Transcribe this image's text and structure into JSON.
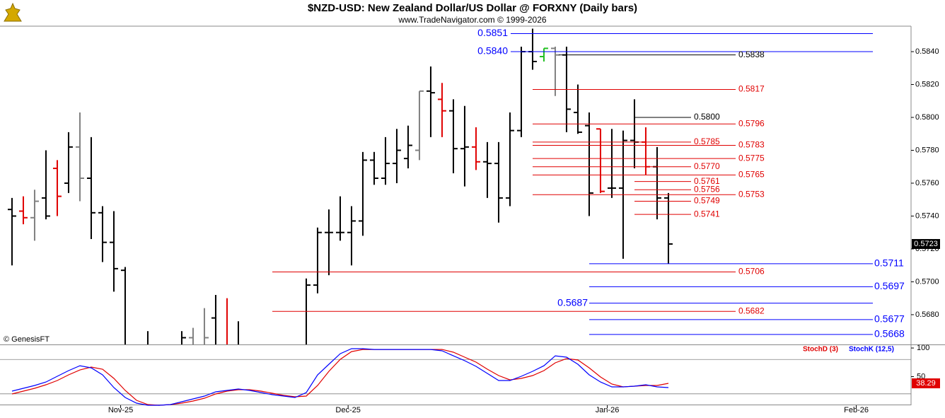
{
  "chart_data": [
    {
      "type": "ohlc",
      "title": "$NZD-USD:  New Zealand Dollar/US Dollar @ FORXNY  (Daily bars)",
      "subtitle": "www.TradeNavigator.com © 1999-2026",
      "annotation": "© GenesisFT",
      "open": [
        0.5744,
        0.5743,
        0.5739,
        0.5751,
        0.5769,
        0.576,
        0.5782,
        0.5763,
        0.5742,
        0.5724,
        0.5707,
        null,
        null,
        null,
        null,
        null,
        0.5666,
        null,
        0.5678,
        null,
        null,
        null,
        null,
        null,
        null,
        null,
        null,
        0.5698,
        0.573,
        0.573,
        0.573,
        0.5737,
        0.5774,
        0.5763,
        0.5772,
        0.5775,
        0.578,
        0.5816,
        0.5811,
        0.5804,
        0.5781,
        0.5782,
        0.5773,
        0.5772,
        0.5751,
        0.5792,
        0.584,
        0.5837,
        0.5842,
        0.5838,
        0.5803,
        0.5795,
        0.5793,
        0.5757,
        0.5757,
        0.5786,
        0.5785,
        0.577,
        0.5751
      ],
      "high": [
        0.5751,
        0.5752,
        0.5756,
        0.578,
        0.5774,
        0.5791,
        0.5803,
        0.5788,
        0.5746,
        0.5743,
        0.5709,
        null,
        0.567,
        null,
        null,
        0.567,
        0.5672,
        0.5684,
        0.5692,
        0.569,
        0.5676,
        null,
        null,
        null,
        null,
        null,
        0.5702,
        0.5733,
        0.5744,
        0.5752,
        0.5746,
        0.5779,
        0.5779,
        0.5788,
        0.5793,
        0.5795,
        0.5816,
        0.5831,
        0.5821,
        0.5811,
        0.5807,
        0.5794,
        0.5785,
        0.5785,
        0.5803,
        0.5843,
        0.5854,
        0.5842,
        0.5843,
        0.5843,
        0.582,
        0.5803,
        0.5793,
        0.5793,
        0.5792,
        0.5811,
        0.5794,
        0.5782,
        0.5754
      ],
      "low": [
        0.571,
        0.5735,
        0.5725,
        0.5738,
        0.574,
        0.5754,
        0.5749,
        0.5726,
        0.5712,
        0.5694,
        null,
        null,
        null,
        null,
        null,
        null,
        null,
        null,
        null,
        null,
        null,
        null,
        null,
        null,
        null,
        null,
        null,
        0.5693,
        0.5704,
        0.5725,
        0.571,
        0.5728,
        0.5759,
        0.5759,
        0.576,
        0.5769,
        0.5774,
        0.5788,
        0.5788,
        0.5766,
        0.5758,
        0.5768,
        0.5751,
        0.5736,
        0.5746,
        0.5788,
        0.5829,
        0.5834,
        0.5813,
        0.5791,
        0.579,
        0.574,
        0.5754,
        0.5751,
        0.5714,
        0.5769,
        0.5765,
        0.5738,
        0.5711
      ],
      "close": [
        0.574,
        0.5739,
        0.5749,
        0.574,
        0.5752,
        0.5782,
        0.5763,
        0.5742,
        0.5724,
        0.5708,
        null,
        null,
        null,
        null,
        null,
        0.5666,
        null,
        0.5666,
        null,
        null,
        null,
        null,
        null,
        null,
        null,
        null,
        0.5698,
        0.573,
        0.573,
        0.573,
        0.5737,
        0.5774,
        0.5763,
        0.5772,
        0.578,
        0.5783,
        0.5816,
        0.5815,
        0.5804,
        0.5781,
        0.5782,
        0.5773,
        0.5772,
        0.5751,
        0.5792,
        0.584,
        0.5834,
        0.5842,
        0.5838,
        0.5805,
        0.5791,
        0.5754,
        0.5755,
        0.5757,
        0.5786,
        0.5785,
        0.577,
        0.5751,
        0.5723
      ],
      "colors": [
        "#000000",
        "#e00000",
        "#808080",
        "#000000",
        "#e00000",
        "#000000",
        "#808080",
        "#000000",
        "#000000",
        "#000000",
        "#000000",
        "#000000",
        "#000000",
        "#000000",
        "#000000",
        "#000000",
        "#808080",
        "#808080",
        "#000000",
        "#e00000",
        "#000000",
        "#000000",
        "#000000",
        "#000000",
        "#000000",
        "#000000",
        "#000000",
        "#000000",
        "#000000",
        "#000000",
        "#000000",
        "#000000",
        "#000000",
        "#000000",
        "#000000",
        "#000000",
        "#808080",
        "#000000",
        "#e00000",
        "#000000",
        "#000000",
        "#e00000",
        "#000000",
        "#000000",
        "#000000",
        "#000000",
        "#000000",
        "#22c022",
        "#808080",
        "#000000",
        "#000000",
        "#000000",
        "#e00000",
        "#000000",
        "#000000",
        "#000000",
        "#e00000",
        "#000000",
        "#000000"
      ],
      "ylim": [
        0.56619,
        0.58555
      ],
      "yticks": [
        {
          "value": 0.584,
          "label": "0.5840"
        },
        {
          "value": 0.582,
          "label": "0.5820"
        },
        {
          "value": 0.58,
          "label": "0.5800"
        },
        {
          "value": 0.578,
          "label": "0.5780"
        },
        {
          "value": 0.576,
          "label": "0.5760"
        },
        {
          "value": 0.574,
          "label": "0.5740"
        },
        {
          "value": 0.572,
          "label": "0.5720"
        },
        {
          "value": 0.57,
          "label": "0.5700"
        },
        {
          "value": 0.568,
          "label": "0.5680"
        }
      ],
      "xlim": [
        -1.06,
        79.44
      ],
      "xticks": [
        {
          "value": 9.6,
          "label": "Nov-25"
        },
        {
          "value": 29.7,
          "label": "Dec-25"
        },
        {
          "value": 52.6,
          "label": "Jan-26"
        },
        {
          "value": 74.6,
          "label": "Feb-26"
        }
      ],
      "levels": [
        {
          "value": 0.5851,
          "color": "#0000ff"
        },
        {
          "value": 0.584,
          "label": "0.5840",
          "color": "#0000ff"
        },
        {
          "value": 0.5838,
          "color": "#000000"
        },
        {
          "value": 0.5817,
          "color": "#e00000"
        },
        {
          "value": 0.58,
          "label": "0.5800",
          "color": "#000000"
        },
        {
          "value": 0.5796,
          "color": "#e00000"
        },
        {
          "value": 0.5785,
          "color": "#e00000"
        },
        {
          "value": 0.5783,
          "color": "#e00000"
        },
        {
          "value": 0.5775,
          "color": "#e00000"
        },
        {
          "value": 0.577,
          "label": "0.5770",
          "color": "#e00000"
        },
        {
          "value": 0.5765,
          "color": "#e00000"
        },
        {
          "value": 0.5761,
          "color": "#e00000"
        },
        {
          "value": 0.5756,
          "color": "#e00000"
        },
        {
          "value": 0.5753,
          "color": "#e00000"
        },
        {
          "value": 0.5749,
          "color": "#e00000"
        },
        {
          "value": 0.5741,
          "color": "#e00000"
        },
        {
          "value": 0.5711,
          "color": "#0000ff"
        },
        {
          "value": 0.5706,
          "color": "#e00000"
        },
        {
          "value": 0.5697,
          "color": "#0000ff"
        },
        {
          "value": 0.5687,
          "color": "#0000ff"
        },
        {
          "value": 0.5682,
          "color": "#e00000"
        },
        {
          "value": 0.5677,
          "color": "#0000ff"
        },
        {
          "value": 0.5668,
          "color": "#0000ff"
        }
      ]
    },
    {
      "type": "line",
      "ylim": [
        0,
        105
      ],
      "yticks": [
        100,
        50
      ],
      "hlines": [
        80,
        20
      ],
      "series": [
        {
          "name": "StochD (3)",
          "color": "#e00000",
          "values": [
            19.8,
            24.7,
            29.6,
            35.8,
            43.2,
            53.1,
            61.7,
            66.7,
            63.0,
            46.9,
            25.9,
            8.6,
            1.2,
            0,
            1.2,
            3.7,
            7.4,
            12.3,
            19.8,
            24.7,
            27.2,
            27.2,
            24.7,
            21.0,
            17.3,
            14.8,
            16.0,
            34.6,
            59.3,
            80.2,
            93.8,
            97.5,
            97.5,
            97.5,
            97.5,
            97.5,
            97.5,
            97.5,
            97.5,
            92.6,
            84.0,
            75.3,
            63.0,
            51.9,
            44.4,
            46.9,
            51.9,
            60.5,
            74.1,
            81.5,
            79.0,
            65.4,
            49.4,
            37.0,
            32.1,
            33.3,
            34.6,
            34.6,
            38.29
          ]
        },
        {
          "name": "StochK (12,5)",
          "color": "#0000ff",
          "values": [
            24.7,
            29.6,
            34.6,
            40.7,
            50.6,
            60.5,
            69.1,
            65.4,
            53.1,
            30.9,
            13.6,
            3.7,
            0,
            0,
            1.2,
            6.2,
            11.1,
            16.0,
            23.5,
            25.9,
            28.4,
            25.9,
            22.2,
            18.5,
            16.0,
            13.6,
            22.2,
            53.1,
            71.6,
            90.1,
            98.8,
            98.8,
            97.5,
            97.5,
            97.5,
            97.5,
            97.5,
            97.5,
            95.1,
            86.4,
            77.8,
            67.9,
            55.6,
            43.2,
            43.2,
            50.6,
            59.3,
            69.1,
            86.4,
            84.0,
            71.6,
            53.1,
            40.7,
            32.1,
            32.1,
            33.3,
            35.8,
            32.1,
            30.9
          ]
        }
      ]
    }
  ]
}
